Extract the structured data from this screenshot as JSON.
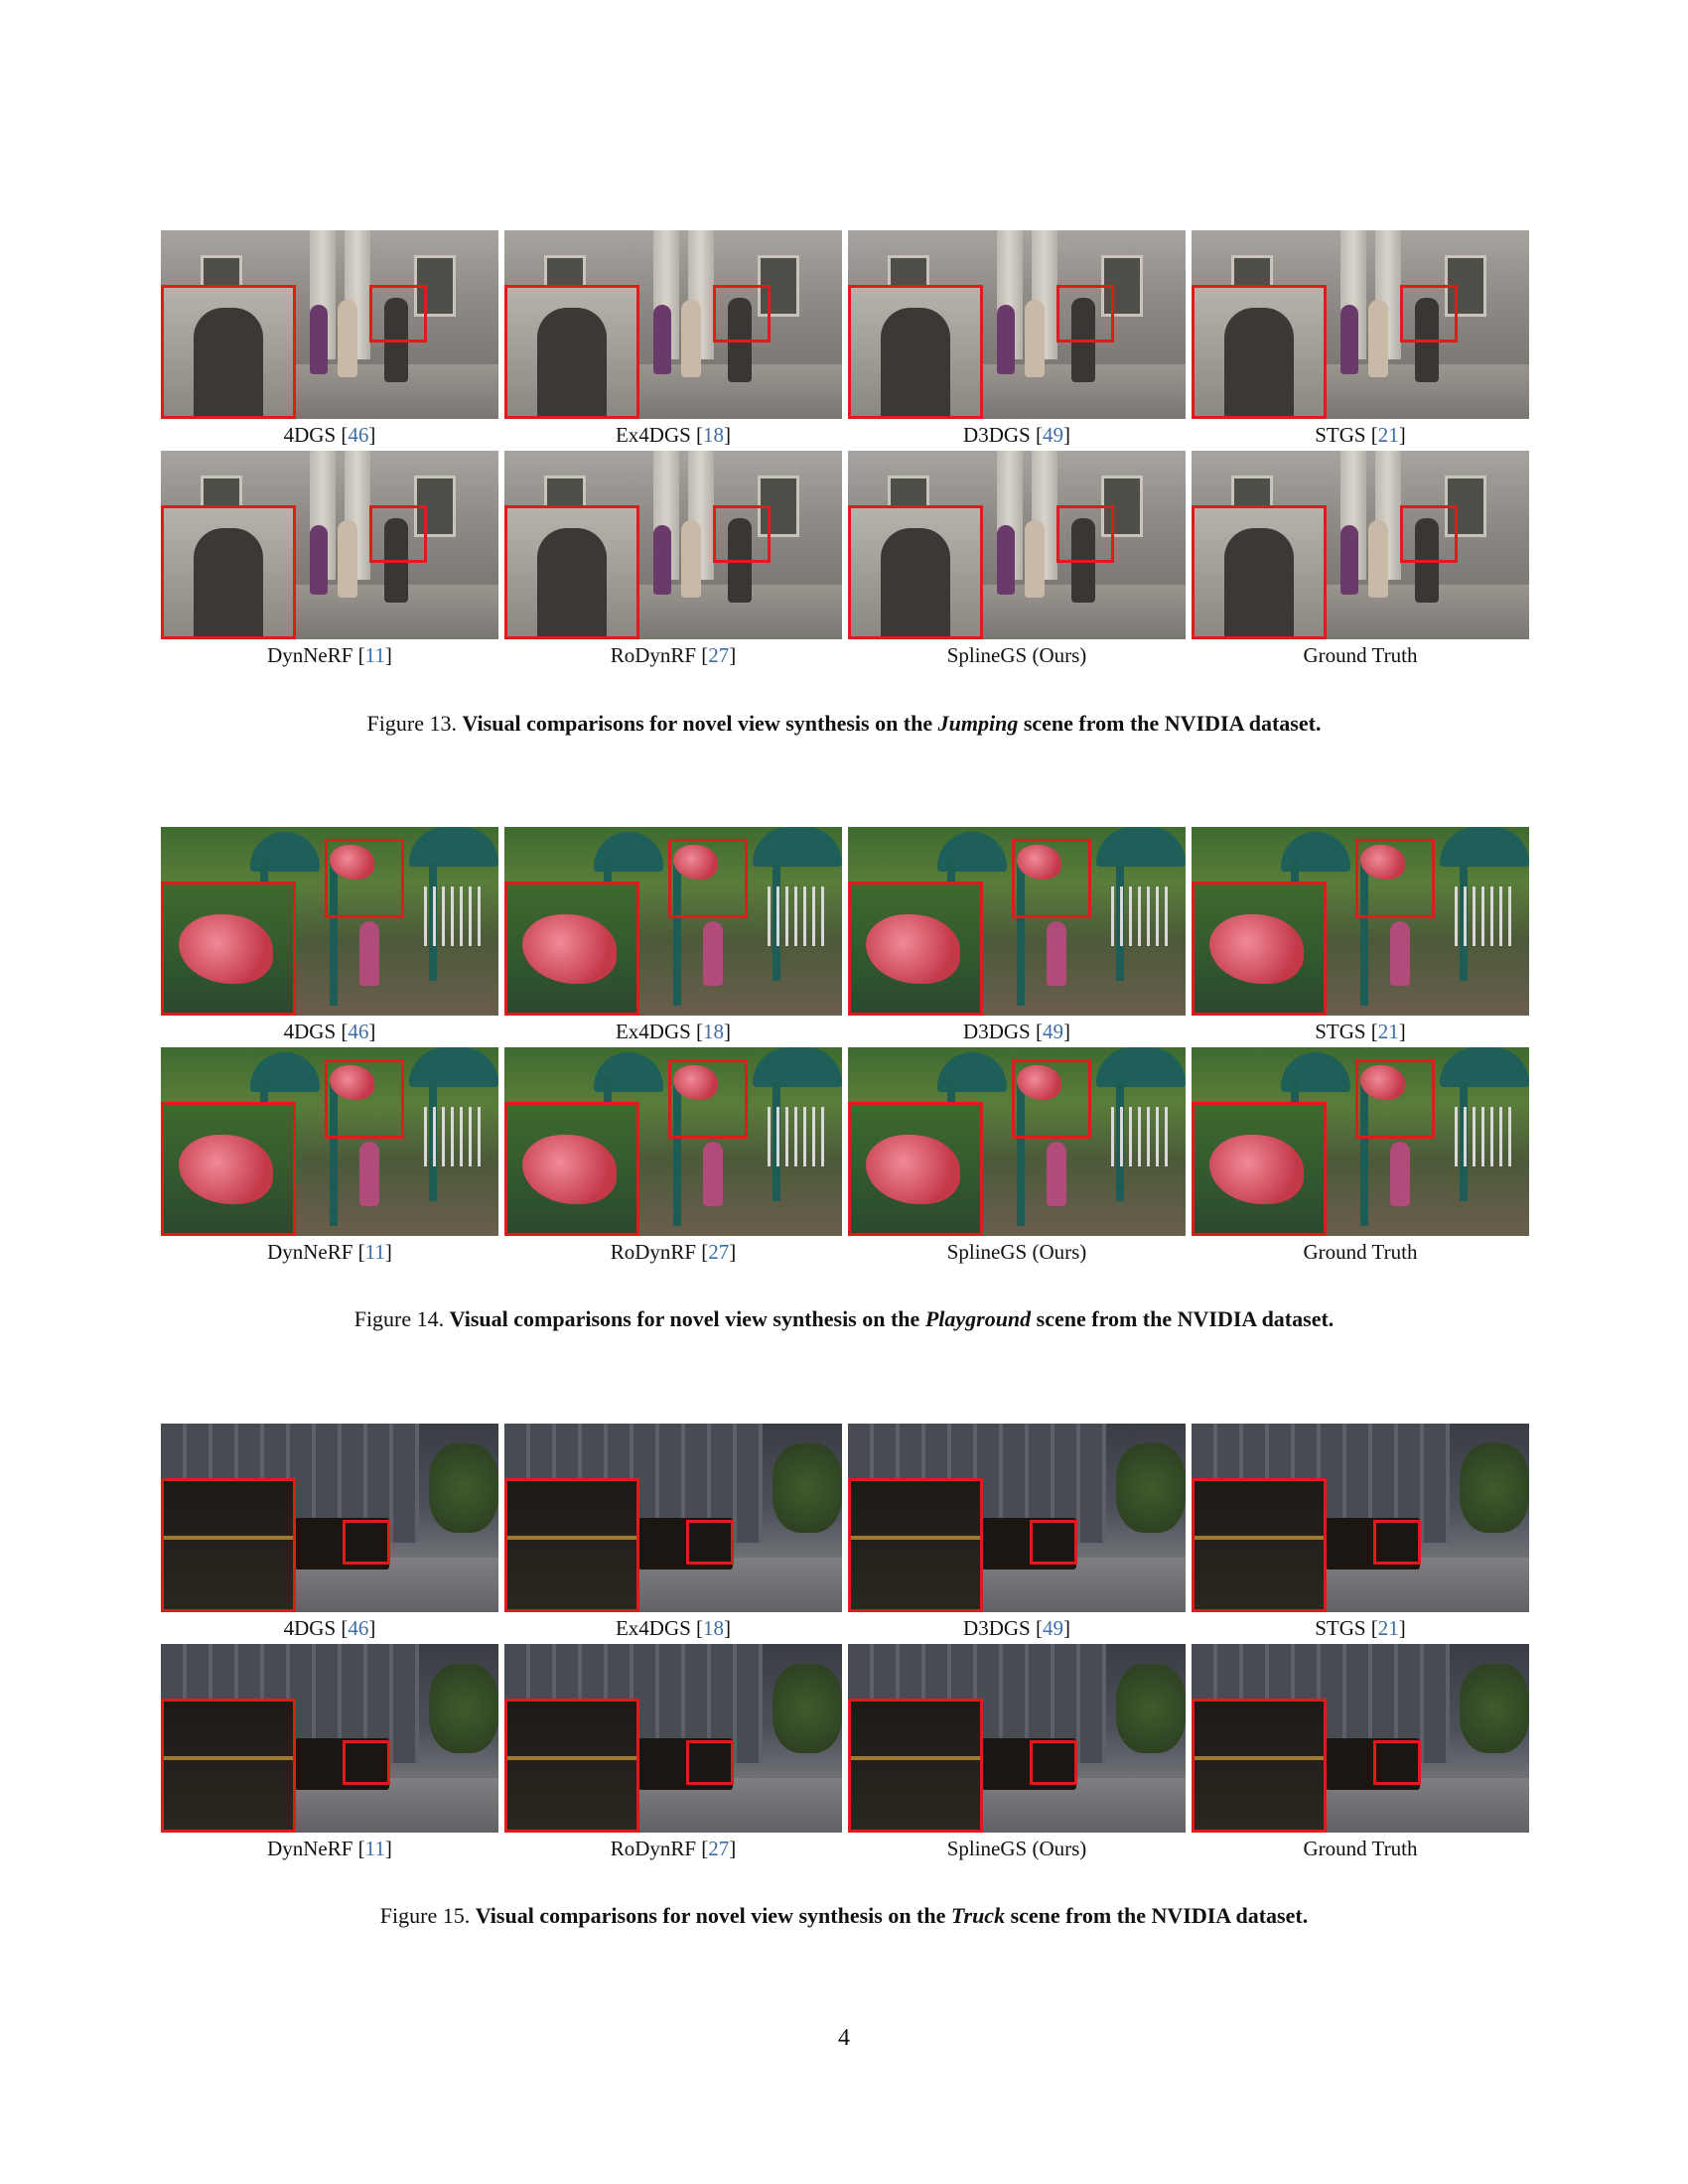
{
  "figures": [
    {
      "scene": "jumping",
      "rows": [
        [
          {
            "method": "4DGS",
            "ref": "46"
          },
          {
            "method": "Ex4DGS",
            "ref": "18"
          },
          {
            "method": "D3DGS",
            "ref": "49"
          },
          {
            "method": "STGS",
            "ref": "21"
          }
        ],
        [
          {
            "method": "DynNeRF",
            "ref": "11"
          },
          {
            "method": "RoDynRF",
            "ref": "27"
          },
          {
            "method": "SplineGS (Ours)",
            "ref": ""
          },
          {
            "method": "Ground Truth",
            "ref": ""
          }
        ]
      ],
      "caption": {
        "number": "Figure 13.",
        "text_before": "Visual comparisons for novel view synthesis on the",
        "scene_name": "Jumping",
        "text_after": "scene from the NVIDIA dataset."
      }
    },
    {
      "scene": "playground",
      "rows": [
        [
          {
            "method": "4DGS",
            "ref": "46"
          },
          {
            "method": "Ex4DGS",
            "ref": "18"
          },
          {
            "method": "D3DGS",
            "ref": "49"
          },
          {
            "method": "STGS",
            "ref": "21"
          }
        ],
        [
          {
            "method": "DynNeRF",
            "ref": "11"
          },
          {
            "method": "RoDynRF",
            "ref": "27"
          },
          {
            "method": "SplineGS (Ours)",
            "ref": ""
          },
          {
            "method": "Ground Truth",
            "ref": ""
          }
        ]
      ],
      "caption": {
        "number": "Figure 14.",
        "text_before": "Visual comparisons for novel view synthesis on the",
        "scene_name": "Playground",
        "text_after": "scene from the NVIDIA dataset."
      }
    },
    {
      "scene": "truck",
      "rows": [
        [
          {
            "method": "4DGS",
            "ref": "46"
          },
          {
            "method": "Ex4DGS",
            "ref": "18"
          },
          {
            "method": "D3DGS",
            "ref": "49"
          },
          {
            "method": "STGS",
            "ref": "21"
          }
        ],
        [
          {
            "method": "DynNeRF",
            "ref": "11"
          },
          {
            "method": "RoDynRF",
            "ref": "27"
          },
          {
            "method": "SplineGS (Ours)",
            "ref": ""
          },
          {
            "method": "Ground Truth",
            "ref": ""
          }
        ]
      ],
      "caption": {
        "number": "Figure 15.",
        "text_before": "Visual comparisons for novel view synthesis on the",
        "scene_name": "Truck",
        "text_after": "scene from the NVIDIA dataset."
      }
    }
  ],
  "page_number": "4",
  "colors": {
    "highlight_box": "#e01b1b",
    "citation_link": "#3b6ea8"
  }
}
